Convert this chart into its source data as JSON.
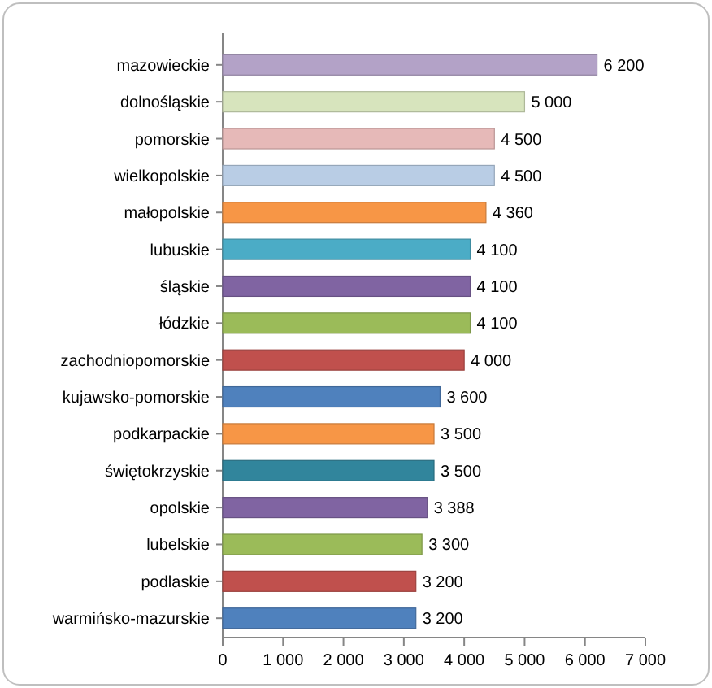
{
  "chart_data": {
    "type": "bar",
    "orientation": "horizontal",
    "categories": [
      "mazowieckie",
      "dolnośląskie",
      "pomorskie",
      "wielkopolskie",
      "małopolskie",
      "lubuskie",
      "śląskie",
      "łódzkie",
      "zachodniopomorskie",
      "kujawsko-pomorskie",
      "podkarpackie",
      "świętokrzyskie",
      "opolskie",
      "lubelskie",
      "podlaskie",
      "warmińsko-mazurskie"
    ],
    "values": [
      6200,
      5000,
      4500,
      4500,
      4360,
      4100,
      4100,
      4100,
      4000,
      3600,
      3500,
      3500,
      3388,
      3300,
      3200,
      3200
    ],
    "colors": [
      "#b3a2c7",
      "#d7e4bd",
      "#e6b9b8",
      "#b9cde5",
      "#f79646",
      "#4bacc6",
      "#8064a2",
      "#9bbb59",
      "#c0504d",
      "#4f81bd",
      "#f79646",
      "#31859c",
      "#8064a2",
      "#9bbb59",
      "#c0504d",
      "#4f81bd"
    ],
    "value_labels": [
      "6 200",
      "5 000",
      "4 500",
      "4 500",
      "4 360",
      "4 100",
      "4 100",
      "4 100",
      "4 000",
      "3 600",
      "3 500",
      "3 500",
      "3 388",
      "3 300",
      "3 200",
      "3 200"
    ],
    "xlim": [
      0,
      7000
    ],
    "xticks": [
      0,
      {
        "value": 1000,
        "label": "1 000"
      },
      {
        "value": 2000,
        "label": "2 000"
      },
      {
        "value": 3000,
        "label": "3 000"
      },
      {
        "value": 4000,
        "label": "4 000"
      },
      {
        "value": 5000,
        "label": "5 000"
      },
      {
        "value": 6000,
        "label": "6 000"
      },
      {
        "value": 7000,
        "label": "7 000"
      }
    ]
  }
}
